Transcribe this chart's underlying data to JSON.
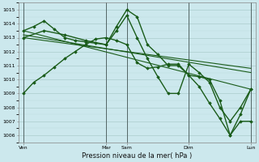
{
  "bg_color": "#cce8ed",
  "grid_color_major": "#aacccc",
  "grid_color_minor": "#bbdddd",
  "line_color": "#1a5c1a",
  "xlabel": "Pression niveau de la mer( hPa )",
  "ylim": [
    1005.5,
    1015.5
  ],
  "yticks": [
    1006,
    1007,
    1008,
    1009,
    1010,
    1011,
    1012,
    1013,
    1014,
    1015
  ],
  "xtick_labels": [
    "Ven",
    "Mar",
    "Sam",
    "Dim",
    "Lun"
  ],
  "xtick_positions": [
    0,
    16,
    20,
    32,
    44
  ],
  "vline_positions": [
    0,
    16,
    20,
    32,
    44
  ],
  "xlim": [
    -1,
    45
  ],
  "series": [
    {
      "x": [
        0,
        2,
        4,
        6,
        8,
        10,
        12,
        14,
        16,
        18,
        20,
        22,
        24,
        26,
        28,
        30,
        32,
        34,
        36,
        38,
        40,
        42,
        44
      ],
      "y": [
        1009.0,
        1009.8,
        1010.3,
        1010.9,
        1011.5,
        1012.0,
        1012.5,
        1012.9,
        1013.0,
        1012.8,
        1012.5,
        1011.2,
        1010.8,
        1010.9,
        1011.1,
        1011.1,
        1010.3,
        1009.5,
        1008.3,
        1007.2,
        1006.0,
        1007.5,
        1009.3
      ],
      "lw": 1.0,
      "marker": "D",
      "ms": 1.8
    },
    {
      "x": [
        0,
        2,
        4,
        6,
        8,
        10,
        12,
        14,
        16,
        18,
        20,
        22,
        24,
        26,
        28,
        30,
        32,
        34,
        36,
        38,
        40,
        42,
        44
      ],
      "y": [
        1013.5,
        1013.8,
        1014.2,
        1013.6,
        1013.0,
        1012.8,
        1012.7,
        1012.6,
        1012.5,
        1013.5,
        1014.6,
        1013.0,
        1011.5,
        1010.2,
        1009.0,
        1009.0,
        1011.1,
        1010.5,
        1009.8,
        1008.0,
        1007.0,
        1008.0,
        1009.3
      ],
      "lw": 1.0,
      "marker": "D",
      "ms": 1.8
    },
    {
      "x": [
        0,
        4,
        8,
        12,
        16,
        18,
        20,
        22,
        24,
        26,
        28,
        30,
        32,
        34,
        36,
        38,
        40,
        42,
        44
      ],
      "y": [
        1013.0,
        1013.5,
        1013.2,
        1012.8,
        1012.5,
        1013.8,
        1015.0,
        1014.5,
        1012.5,
        1011.8,
        1011.0,
        1011.0,
        1010.3,
        1010.2,
        1010.0,
        1008.5,
        1006.0,
        1007.0,
        1007.0
      ],
      "lw": 1.0,
      "marker": "D",
      "ms": 1.8
    },
    {
      "x": [
        0,
        44
      ],
      "y": [
        1013.5,
        1009.3
      ],
      "lw": 0.8,
      "marker": null,
      "ms": 0
    },
    {
      "x": [
        0,
        44
      ],
      "y": [
        1013.2,
        1010.5
      ],
      "lw": 0.8,
      "marker": null,
      "ms": 0
    },
    {
      "x": [
        0,
        44
      ],
      "y": [
        1013.0,
        1010.8
      ],
      "lw": 0.8,
      "marker": null,
      "ms": 0
    }
  ]
}
